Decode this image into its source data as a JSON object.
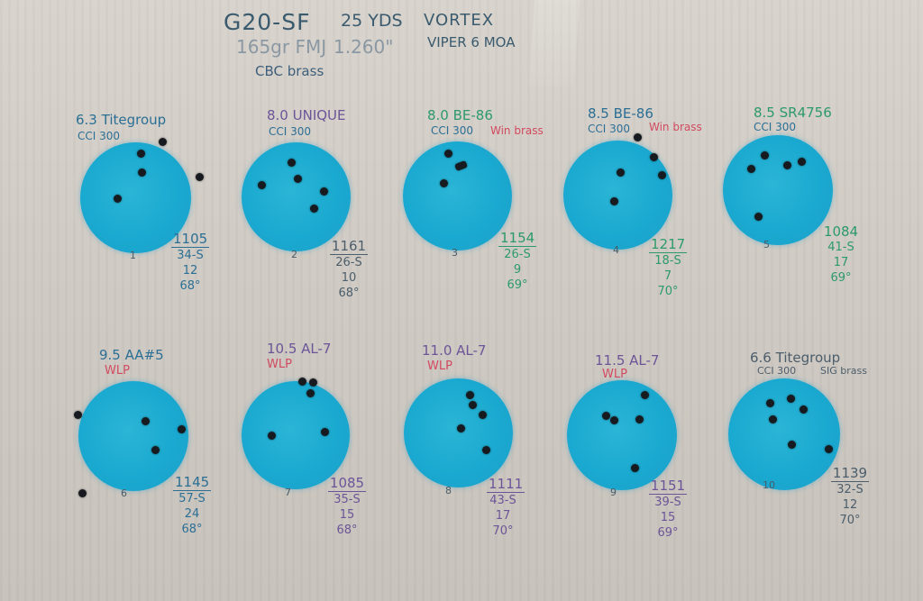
{
  "header": {
    "pistol": "G20-SF",
    "distance": "25 YDS",
    "optic_brand": "VORTEX",
    "bullet": "165gr FMJ",
    "oal": "1.260\"",
    "optic_model": "VIPER 6 MOA",
    "brass": "CBC brass"
  },
  "targets": [
    {
      "load": "6.3 Titegroup",
      "primer": "CCI 300",
      "brass": "",
      "number": "1",
      "velocity": "1105",
      "es": "34-S",
      "sd": "12",
      "temp": "68°"
    },
    {
      "load": "8.0 UNIQUE",
      "primer": "CCI 300",
      "brass": "",
      "number": "2",
      "velocity": "1161",
      "es": "26-S",
      "sd": "10",
      "temp": "68°"
    },
    {
      "load": "8.0 BE-86",
      "primer": "CCI 300",
      "brass": "Win brass",
      "number": "3",
      "velocity": "1154",
      "es": "26-S",
      "sd": "9",
      "temp": "69°"
    },
    {
      "load": "8.5 BE-86",
      "primer": "CCI 300",
      "brass": "Win brass",
      "number": "4",
      "velocity": "1217",
      "es": "18-S",
      "sd": "7",
      "temp": "70°"
    },
    {
      "load": "8.5 SR4756",
      "primer": "CCI 300",
      "brass": "",
      "number": "5",
      "velocity": "1084",
      "es": "41-S",
      "sd": "17",
      "temp": "69°"
    },
    {
      "load": "9.5 AA#5",
      "primer": "WLP",
      "brass": "",
      "number": "6",
      "velocity": "1145",
      "es": "57-S",
      "sd": "24",
      "temp": "68°"
    },
    {
      "load": "10.5 AL-7",
      "primer": "WLP",
      "brass": "",
      "number": "7",
      "velocity": "1085",
      "es": "35-S",
      "sd": "15",
      "temp": "68°"
    },
    {
      "load": "11.0 AL-7",
      "primer": "WLP",
      "brass": "",
      "number": "8",
      "velocity": "1111",
      "es": "43-S",
      "sd": "17",
      "temp": "70°"
    },
    {
      "load": "11.5 AL-7",
      "primer": "WLP",
      "brass": "",
      "number": "9",
      "velocity": "1151",
      "es": "39-S",
      "sd": "15",
      "temp": "69°"
    },
    {
      "load": "6.6 Titegroup",
      "primer": "CCI 300",
      "brass": "SIG brass",
      "number": "10",
      "velocity": "1139",
      "es": "32-S",
      "sd": "12",
      "temp": "70°"
    }
  ],
  "colors": {
    "target_blue": "#1aa9d0",
    "ink_blue": "#2c6f95",
    "ink_purple": "#6b5598",
    "ink_green": "#2d9a6a",
    "ink_red": "#d24a60",
    "cardboard": "#d2cdc6",
    "bullet_hole": "#171b20"
  }
}
